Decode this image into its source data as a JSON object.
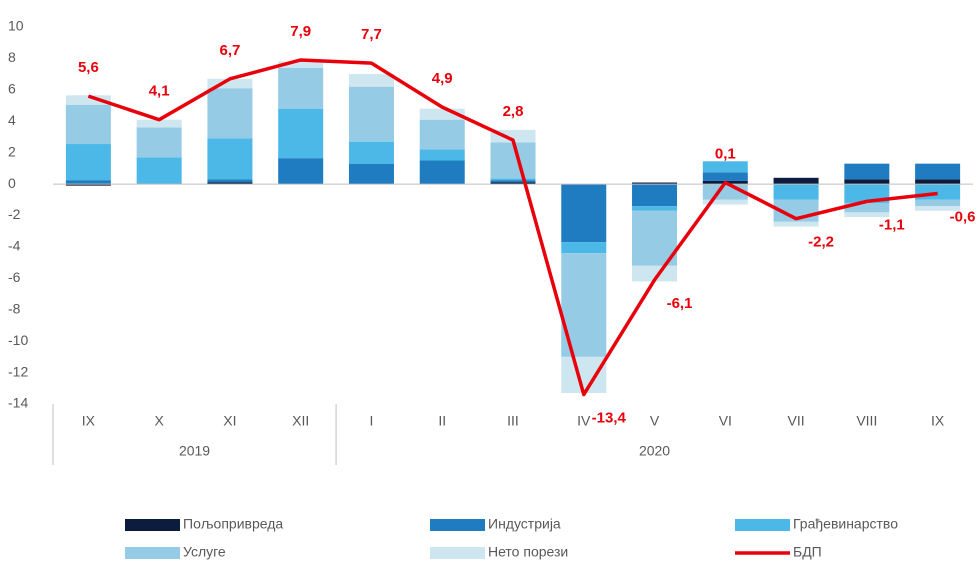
{
  "chart_data": {
    "type": "bar",
    "categories": [
      "IX",
      "X",
      "XI",
      "XII",
      "I",
      "II",
      "III",
      "IV",
      "V",
      "VI",
      "VII",
      "VIII",
      "IX"
    ],
    "x_groups": [
      {
        "label": "2019",
        "count": 4
      },
      {
        "label": "2020",
        "count": 9
      }
    ],
    "series": [
      {
        "name": "Пољопривреда",
        "color": "#0d1b3e",
        "values": [
          -0.1,
          0,
          0.1,
          0,
          0,
          0,
          0.1,
          0,
          0.1,
          0.2,
          0.4,
          0.3,
          0.3
        ]
      },
      {
        "name": "Индустрија",
        "color": "#1f7cc1",
        "values": [
          0.25,
          0,
          0.2,
          1.65,
          1.3,
          1.5,
          0.15,
          -3.7,
          -1.4,
          0.55,
          0,
          1.0,
          1.0
        ]
      },
      {
        "name": "Грађевинарство",
        "color": "#4bb8e8",
        "values": [
          2.3,
          1.7,
          2.6,
          3.15,
          1.4,
          0.7,
          0.1,
          -0.7,
          -0.3,
          0.7,
          -1.0,
          -1.2,
          -1.0
        ]
      },
      {
        "name": "Услуге",
        "color": "#95cbe4",
        "values": [
          2.5,
          1.9,
          3.2,
          2.6,
          3.5,
          1.9,
          2.3,
          -6.6,
          -3.5,
          -1.0,
          -1.4,
          -0.6,
          -0.4
        ]
      },
      {
        "name": "Нето порези",
        "color": "#cde6ef",
        "values": [
          0.6,
          0.5,
          0.6,
          0.4,
          0.8,
          0.7,
          0.8,
          -2.3,
          -1.0,
          -0.3,
          -0.3,
          -0.3,
          -0.3
        ]
      },
      {
        "name": "БДП",
        "type": "line",
        "color": "#e8000b",
        "values": [
          5.6,
          4.1,
          6.7,
          7.9,
          7.7,
          4.9,
          2.8,
          -13.4,
          -6.1,
          0.1,
          -2.2,
          -1.1,
          -0.6
        ],
        "value_labels": [
          "5,6",
          "4,1",
          "6,7",
          "7,9",
          "7,7",
          "4,9",
          "2,8",
          "-13,4",
          "-6,1",
          "0,1",
          "-2,2",
          "-1,1",
          "-0,6"
        ]
      }
    ],
    "ylim": [
      -14,
      10
    ],
    "yticks": [
      -14,
      -12,
      -10,
      -8,
      -6,
      -4,
      -2,
      0,
      2,
      4,
      6,
      8,
      10
    ],
    "grid": false
  }
}
